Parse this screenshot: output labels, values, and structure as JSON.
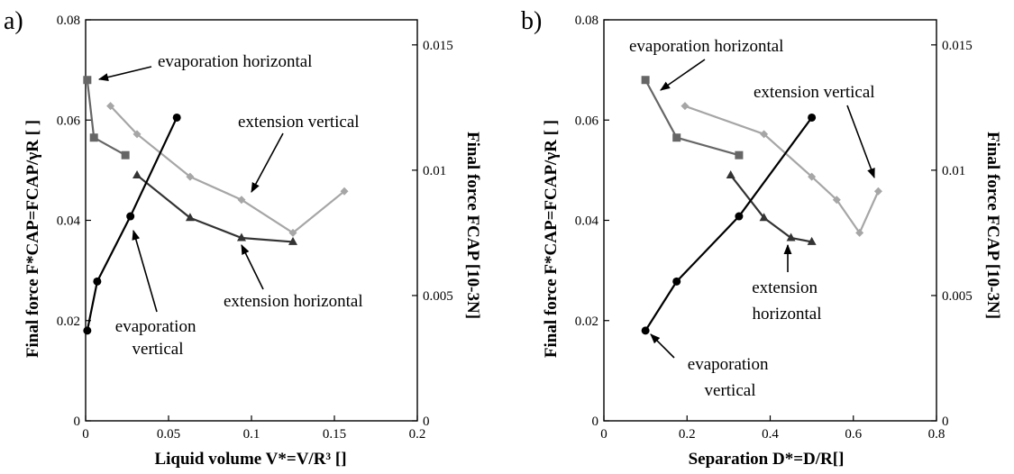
{
  "chart_data": [
    {
      "type": "line",
      "panel_label": "a)",
      "xlabel": "Liquid volume V*=V/R³ []",
      "ylabel_left": "Final force F*CAP=FCAP/γR [ ]",
      "ylabel_right": "Final force FCAP [10-3N]",
      "xlim": [
        0,
        0.2
      ],
      "ylim": [
        0,
        0.08
      ],
      "ylim_right": [
        0,
        0.016
      ],
      "x_ticks": [
        0,
        0.05,
        0.1,
        0.15,
        0.2
      ],
      "y_ticks": [
        0,
        0.02,
        0.04,
        0.06,
        0.08
      ],
      "y_right_ticks": [
        0,
        0.005,
        0.01,
        0.015
      ],
      "x_tick_labels": [
        "0",
        "0.05",
        "0.1",
        "0.15",
        "0.2"
      ],
      "y_tick_labels": [
        "0",
        "0.02",
        "0.04",
        "0.06",
        "0.08"
      ],
      "y_right_tick_labels": [
        "0",
        "0.005",
        "0.01",
        "0.015"
      ],
      "grid": false,
      "series": [
        {
          "name": "evaporation horizontal",
          "marker": "square",
          "color": "#666666",
          "x": [
            0.001,
            0.005,
            0.024
          ],
          "y": [
            0.068,
            0.0565,
            0.053
          ]
        },
        {
          "name": "extension vertical",
          "marker": "diamond",
          "color": "#a6a6a6",
          "x": [
            0.015,
            0.031,
            0.063,
            0.094,
            0.125,
            0.156
          ],
          "y": [
            0.0628,
            0.0572,
            0.0487,
            0.0441,
            0.0375,
            0.0458
          ]
        },
        {
          "name": "extension horizontal",
          "marker": "triangle",
          "color": "#333333",
          "x": [
            0.031,
            0.063,
            0.094,
            0.125
          ],
          "y": [
            0.049,
            0.0405,
            0.0365,
            0.0357
          ]
        },
        {
          "name": "evaporation vertical",
          "marker": "circle",
          "color": "#000000",
          "x": [
            0.001,
            0.007,
            0.027,
            0.055
          ],
          "y": [
            0.018,
            0.0278,
            0.0408,
            0.0605
          ]
        }
      ]
    },
    {
      "type": "line",
      "panel_label": "b)",
      "xlabel": "Separation D*=D/R[]",
      "ylabel_left": "Final force F*CAP=FCAP/γR [ ]",
      "ylabel_right": "Final force FCAP [10-3N]",
      "xlim": [
        0,
        0.8
      ],
      "ylim": [
        0,
        0.08
      ],
      "ylim_right": [
        0,
        0.016
      ],
      "x_ticks": [
        0,
        0.2,
        0.4,
        0.6,
        0.8
      ],
      "y_ticks": [
        0,
        0.02,
        0.04,
        0.06,
        0.08
      ],
      "y_right_ticks": [
        0,
        0.005,
        0.01,
        0.015
      ],
      "x_tick_labels": [
        "0",
        "0.2",
        "0.4",
        "0.6",
        "0.8"
      ],
      "y_tick_labels": [
        "0",
        "0.02",
        "0.04",
        "0.06",
        "0.08"
      ],
      "y_right_tick_labels": [
        "0",
        "0.005",
        "0.01",
        "0.015"
      ],
      "grid": false,
      "series": [
        {
          "name": "evaporation horizontal",
          "marker": "square",
          "color": "#666666",
          "x": [
            0.1,
            0.175,
            0.325
          ],
          "y": [
            0.068,
            0.0565,
            0.053
          ]
        },
        {
          "name": "extension vertical",
          "marker": "diamond",
          "color": "#a6a6a6",
          "x": [
            0.195,
            0.385,
            0.5,
            0.56,
            0.615,
            0.66
          ],
          "y": [
            0.0628,
            0.0572,
            0.0487,
            0.0441,
            0.0375,
            0.0458
          ]
        },
        {
          "name": "extension horizontal",
          "marker": "triangle",
          "color": "#333333",
          "x": [
            0.305,
            0.385,
            0.45,
            0.5
          ],
          "y": [
            0.049,
            0.0405,
            0.0365,
            0.0357
          ]
        },
        {
          "name": "evaporation vertical",
          "marker": "circle",
          "color": "#000000",
          "x": [
            0.1,
            0.175,
            0.325,
            0.5
          ],
          "y": [
            0.018,
            0.0278,
            0.0408,
            0.0605
          ]
        }
      ]
    }
  ]
}
